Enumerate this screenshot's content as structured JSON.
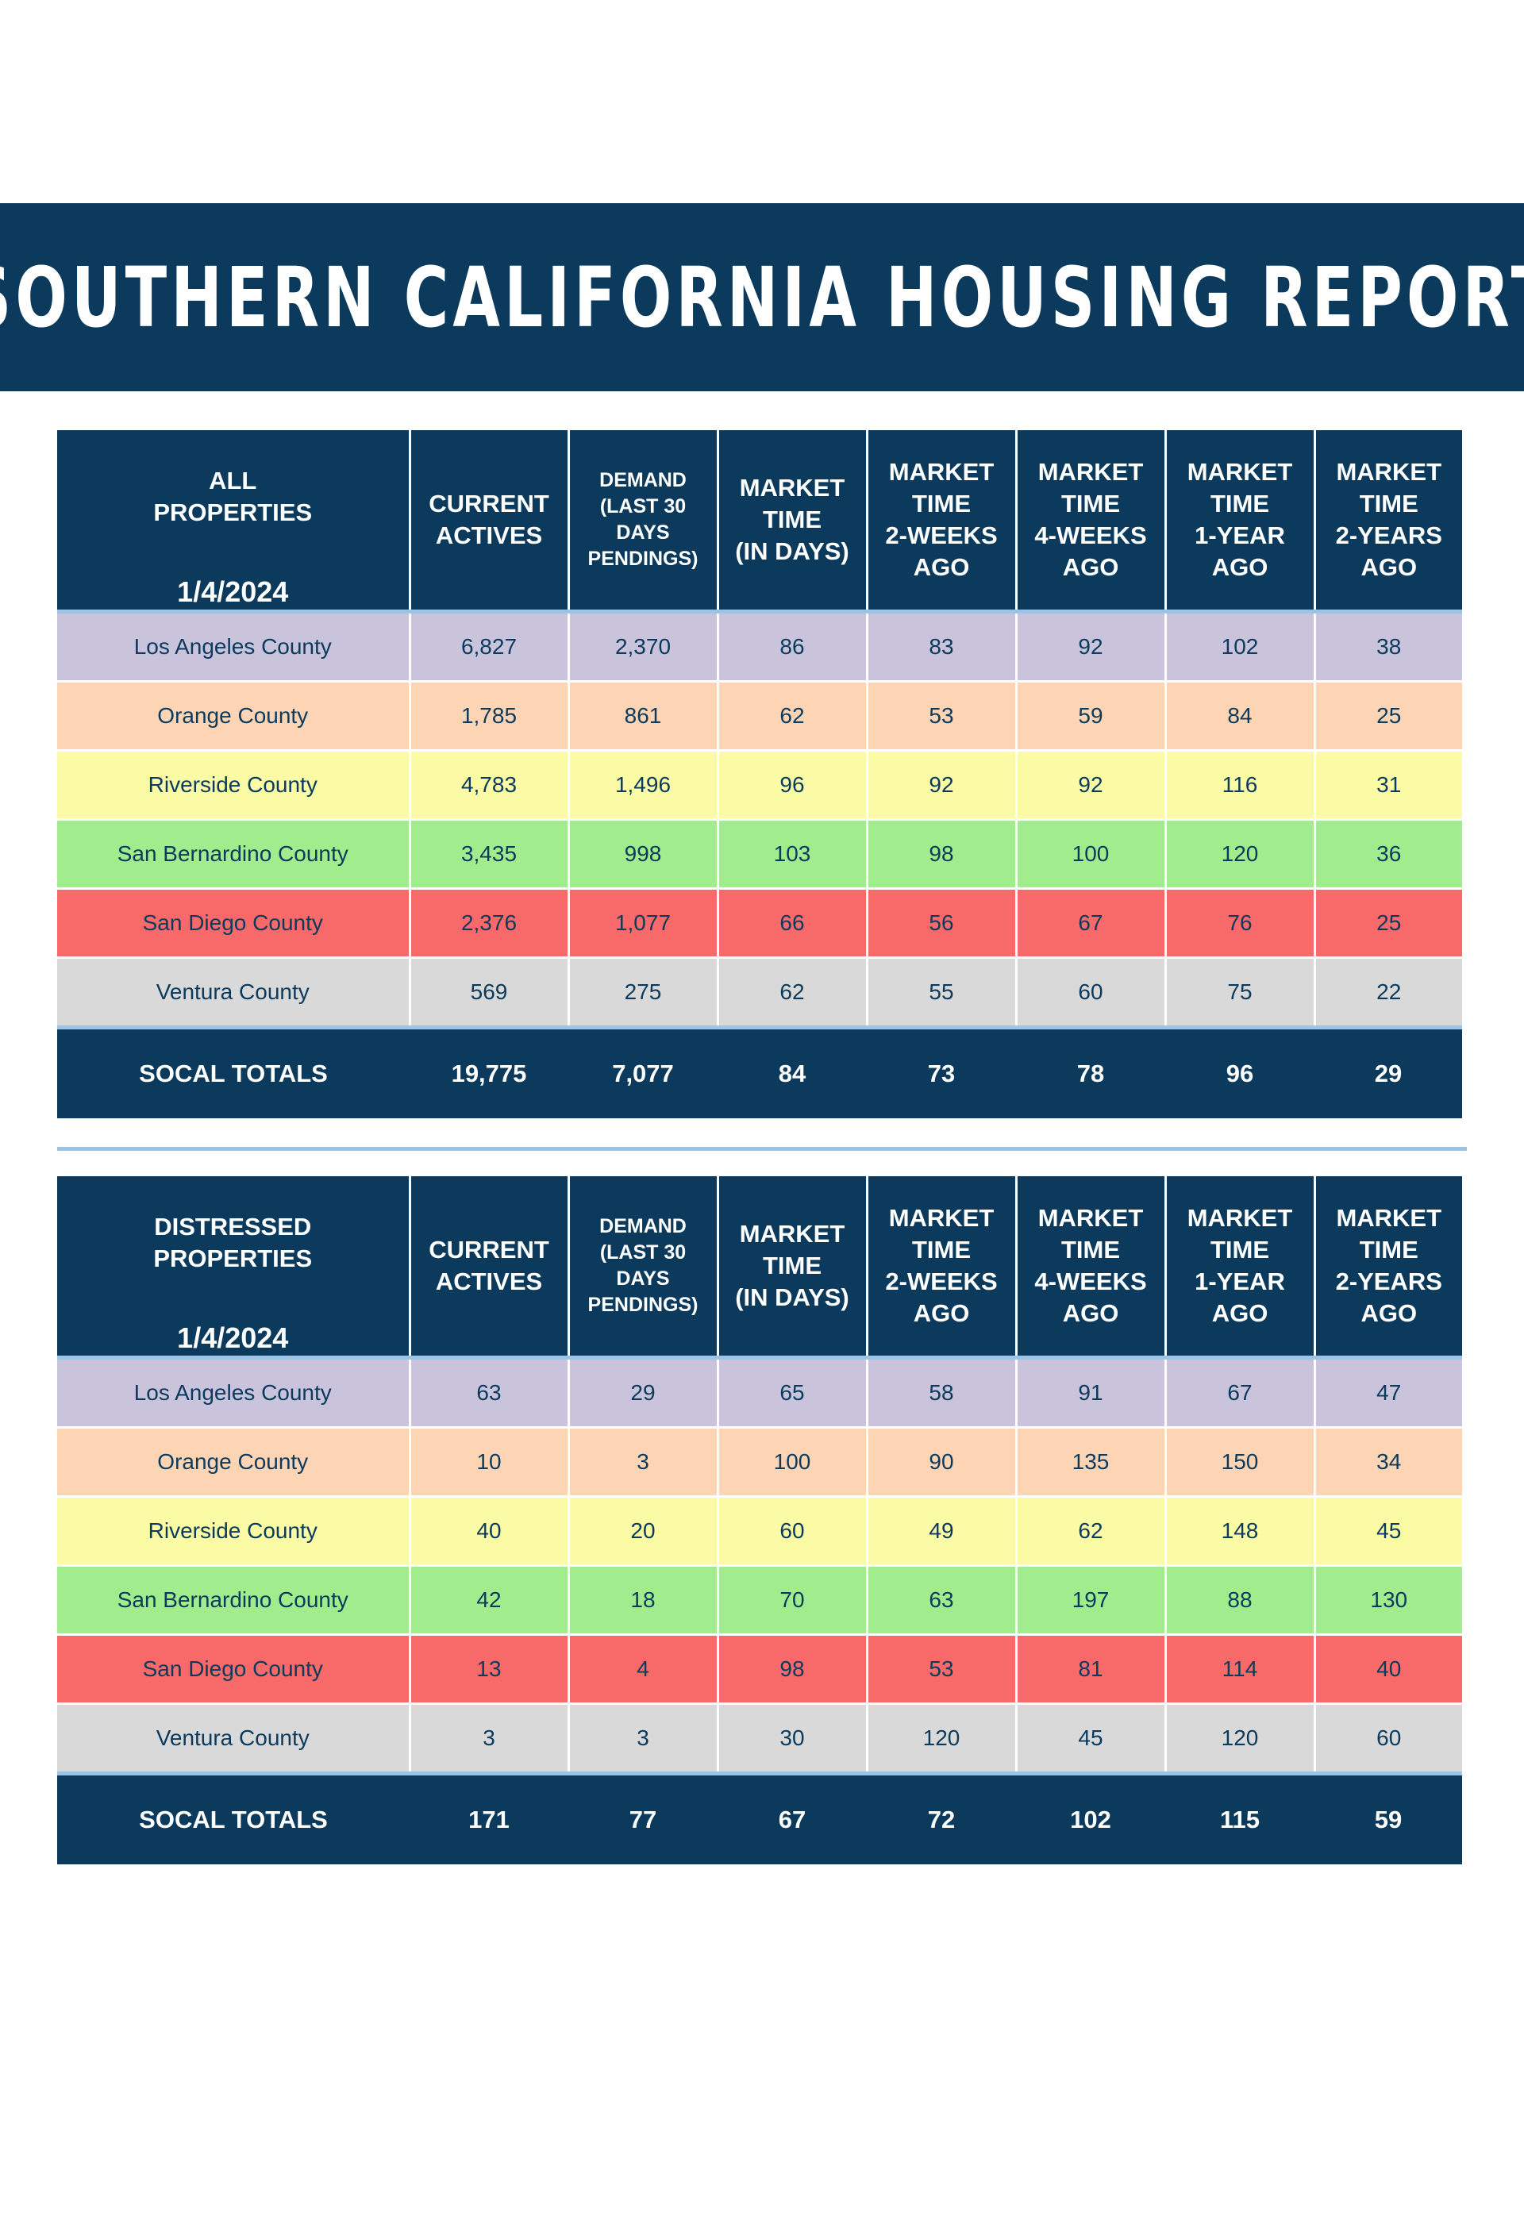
{
  "title": "SOUTHERN CALIFORNIA HOUSING REPORT",
  "colors": {
    "navy": "#0b3a5c",
    "divider": "#9dc3e6",
    "los_angeles": "#c9c3dc",
    "orange": "#fdd5b4",
    "riverside": "#fbfba5",
    "san_bernardino": "#a1ed8d",
    "san_diego": "#f86a6a",
    "ventura": "#d9d9d9"
  },
  "columns": {
    "current": [
      "CURRENT",
      "ACTIVES"
    ],
    "demand": [
      "DEMAND",
      "(LAST 30",
      "DAYS",
      "PENDINGS)"
    ],
    "mt": [
      "MARKET",
      "TIME",
      "(IN DAYS)"
    ],
    "mt2w": [
      "MARKET",
      "TIME",
      "2-WEEKS",
      "AGO"
    ],
    "mt4w": [
      "MARKET",
      "TIME",
      "4-WEEKS",
      "AGO"
    ],
    "mt1y": [
      "MARKET",
      "TIME",
      "1-YEAR",
      "AGO"
    ],
    "mt2y": [
      "MARKET",
      "TIME",
      "2-YEARS",
      "AGO"
    ]
  },
  "all_properties": {
    "label": [
      "ALL",
      "PROPERTIES"
    ],
    "date": "1/4/2024",
    "rows": [
      {
        "county": "Los Angeles County",
        "color": "#c9c3dc",
        "values": [
          "6,827",
          "2,370",
          "86",
          "83",
          "92",
          "102",
          "38"
        ]
      },
      {
        "county": "Orange County",
        "color": "#fdd5b4",
        "values": [
          "1,785",
          "861",
          "62",
          "53",
          "59",
          "84",
          "25"
        ]
      },
      {
        "county": "Riverside County",
        "color": "#fbfba5",
        "values": [
          "4,783",
          "1,496",
          "96",
          "92",
          "92",
          "116",
          "31"
        ]
      },
      {
        "county": "San Bernardino County",
        "color": "#a1ed8d",
        "values": [
          "3,435",
          "998",
          "103",
          "98",
          "100",
          "120",
          "36"
        ]
      },
      {
        "county": "San Diego County",
        "color": "#f86a6a",
        "values": [
          "2,376",
          "1,077",
          "66",
          "56",
          "67",
          "76",
          "25"
        ]
      },
      {
        "county": "Ventura County",
        "color": "#d9d9d9",
        "values": [
          "569",
          "275",
          "62",
          "55",
          "60",
          "75",
          "22"
        ]
      }
    ],
    "totals": {
      "label": "SOCAL TOTALS",
      "values": [
        "19,775",
        "7,077",
        "84",
        "73",
        "78",
        "96",
        "29"
      ]
    }
  },
  "distressed_properties": {
    "label": [
      "DISTRESSED",
      "PROPERTIES"
    ],
    "date": "1/4/2024",
    "rows": [
      {
        "county": "Los Angeles County",
        "color": "#c9c3dc",
        "values": [
          "63",
          "29",
          "65",
          "58",
          "91",
          "67",
          "47"
        ]
      },
      {
        "county": "Orange County",
        "color": "#fdd5b4",
        "values": [
          "10",
          "3",
          "100",
          "90",
          "135",
          "150",
          "34"
        ]
      },
      {
        "county": "Riverside County",
        "color": "#fbfba5",
        "values": [
          "40",
          "20",
          "60",
          "49",
          "62",
          "148",
          "45"
        ]
      },
      {
        "county": "San Bernardino County",
        "color": "#a1ed8d",
        "values": [
          "42",
          "18",
          "70",
          "63",
          "197",
          "88",
          "130"
        ]
      },
      {
        "county": "San Diego County",
        "color": "#f86a6a",
        "values": [
          "13",
          "4",
          "98",
          "53",
          "81",
          "114",
          "40"
        ]
      },
      {
        "county": "Ventura County",
        "color": "#d9d9d9",
        "values": [
          "3",
          "3",
          "30",
          "120",
          "45",
          "120",
          "60"
        ]
      }
    ],
    "totals": {
      "label": "SOCAL TOTALS",
      "values": [
        "171",
        "77",
        "67",
        "72",
        "102",
        "115",
        "59"
      ]
    }
  }
}
